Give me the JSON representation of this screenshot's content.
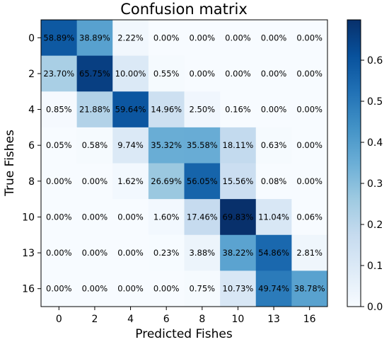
{
  "chart_data": {
    "type": "heatmap",
    "title": "Confusion matrix",
    "xlabel": "Predicted Fishes",
    "ylabel": "True Fishes",
    "x_categories": [
      "0",
      "2",
      "4",
      "6",
      "8",
      "10",
      "13",
      "16"
    ],
    "y_categories": [
      "0",
      "2",
      "4",
      "6",
      "8",
      "10",
      "13",
      "16"
    ],
    "values": [
      [
        58.89,
        38.89,
        2.22,
        0.0,
        0.0,
        0.0,
        0.0,
        0.0
      ],
      [
        23.7,
        65.75,
        10.0,
        0.55,
        0.0,
        0.0,
        0.0,
        0.0
      ],
      [
        0.85,
        21.88,
        59.64,
        14.96,
        2.5,
        0.16,
        0.0,
        0.0
      ],
      [
        0.05,
        0.58,
        9.74,
        35.32,
        35.58,
        18.11,
        0.63,
        0.0
      ],
      [
        0.0,
        0.0,
        1.62,
        26.69,
        56.05,
        15.56,
        0.08,
        0.0
      ],
      [
        0.0,
        0.0,
        0.0,
        1.6,
        17.46,
        69.83,
        11.04,
        0.06
      ],
      [
        0.0,
        0.0,
        0.0,
        0.23,
        3.88,
        38.22,
        54.86,
        2.81
      ],
      [
        0.0,
        0.0,
        0.0,
        0.0,
        0.75,
        10.73,
        49.74,
        38.78
      ]
    ],
    "value_format": "percent-2dp",
    "colormap": "Blues",
    "colorbar": {
      "min": 0.0,
      "max": 0.6983,
      "ticks": [
        "0.0",
        "0.1",
        "0.2",
        "0.3",
        "0.4",
        "0.5",
        "0.6"
      ]
    }
  }
}
